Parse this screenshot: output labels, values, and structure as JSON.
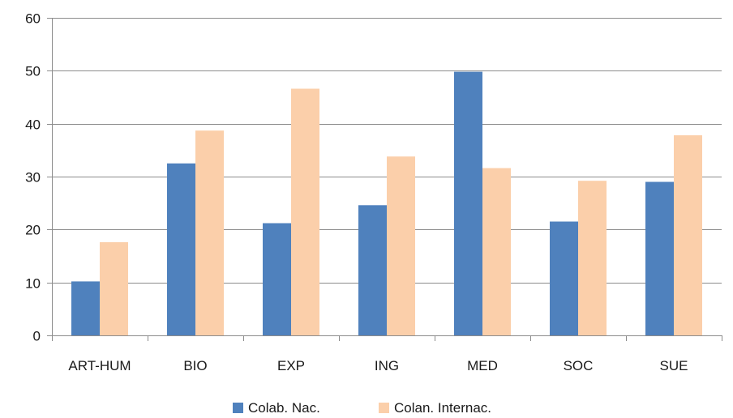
{
  "chart_data": {
    "type": "bar",
    "categories": [
      "ART-HUM",
      "BIO",
      "EXP",
      "ING",
      "MED",
      "SOC",
      "SUE"
    ],
    "series": [
      {
        "name": "Colab. Nac.",
        "color": "#4f81bd",
        "values": [
          10.2,
          32.5,
          21.2,
          24.6,
          49.8,
          21.5,
          29.0
        ]
      },
      {
        "name": "Colan. Internac.",
        "color": "#fbcfaa",
        "values": [
          17.6,
          38.7,
          46.6,
          33.8,
          31.6,
          29.2,
          37.8
        ]
      }
    ],
    "title": "",
    "xlabel": "",
    "ylabel": "",
    "ylim": [
      0,
      60
    ],
    "yticks": [
      0,
      10,
      20,
      30,
      40,
      50,
      60
    ],
    "grid": true,
    "legend_position": "bottom"
  }
}
